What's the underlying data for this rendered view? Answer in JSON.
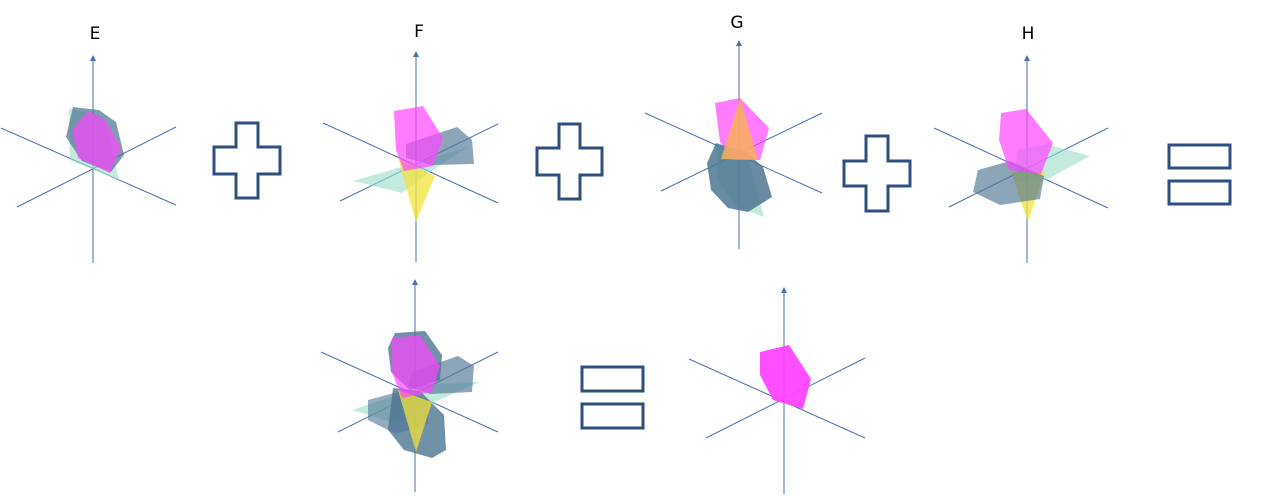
{
  "labels": {
    "e": "E",
    "f": "F",
    "g": "G",
    "h": "H"
  },
  "colors": {
    "axis": "#4a6fb5",
    "operator": "#2f4f7f",
    "magenta": "#ff44ff",
    "steel": "#4e7593",
    "mint": "#99ddc8",
    "yellow": "#f2e33a",
    "orange": "#f7b058"
  },
  "icons": {
    "plus": "plus-sign-icon",
    "equals": "equals-sign-icon"
  }
}
